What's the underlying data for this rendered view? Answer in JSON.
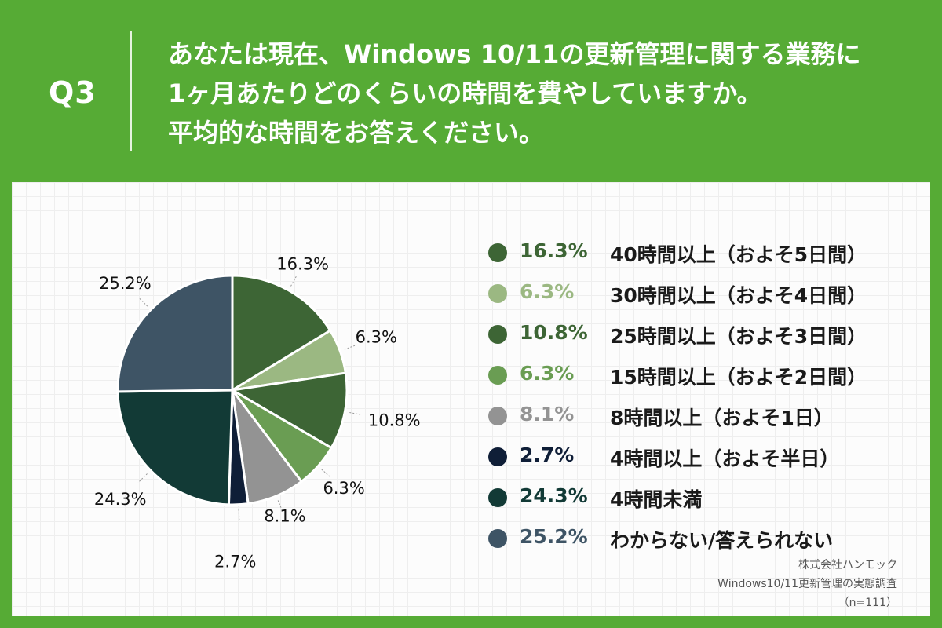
{
  "header": {
    "q_label": "Q3",
    "question_lines": [
      "あなたは現在、Windows 10/11の更新管理に関する業務に",
      "1ヶ月あたりどのくらいの時間を費やしていますか。",
      "平均的な時間をお答えください。"
    ]
  },
  "colors": {
    "background": "#56ab35",
    "panel": "#fcfcfc"
  },
  "chart_data": {
    "type": "pie",
    "start_angle": "12 o'clock",
    "direction": "clockwise",
    "unit": "%",
    "slices": [
      {
        "label": "40時間以上（およそ5日間）",
        "value": 16.3,
        "value_label": "16.3%",
        "color": "#3d6535"
      },
      {
        "label": "30時間以上（およそ4日間）",
        "value": 6.3,
        "value_label": "6.3%",
        "color": "#9bb882"
      },
      {
        "label": "25時間以上（およそ3日間）",
        "value": 10.8,
        "value_label": "10.8%",
        "color": "#3d6535"
      },
      {
        "label": "15時間以上（およそ2日間）",
        "value": 6.3,
        "value_label": "6.3%",
        "color": "#6a9d53"
      },
      {
        "label": "8時間以上（およそ1日）",
        "value": 8.1,
        "value_label": "8.1%",
        "color": "#939393"
      },
      {
        "label": "4時間以上（およそ半日）",
        "value": 2.7,
        "value_label": "2.7%",
        "color": "#0f1e37"
      },
      {
        "label": "4時間未満",
        "value": 24.3,
        "value_label": "24.3%",
        "color": "#123a36"
      },
      {
        "label": "わからない/答えられない",
        "value": 25.2,
        "value_label": "25.2%",
        "color": "#3e5465"
      }
    ]
  },
  "source": {
    "company": "株式会社ハンモック",
    "survey": "Windows10/11更新管理の実態調査",
    "sample": "（n=111）"
  }
}
